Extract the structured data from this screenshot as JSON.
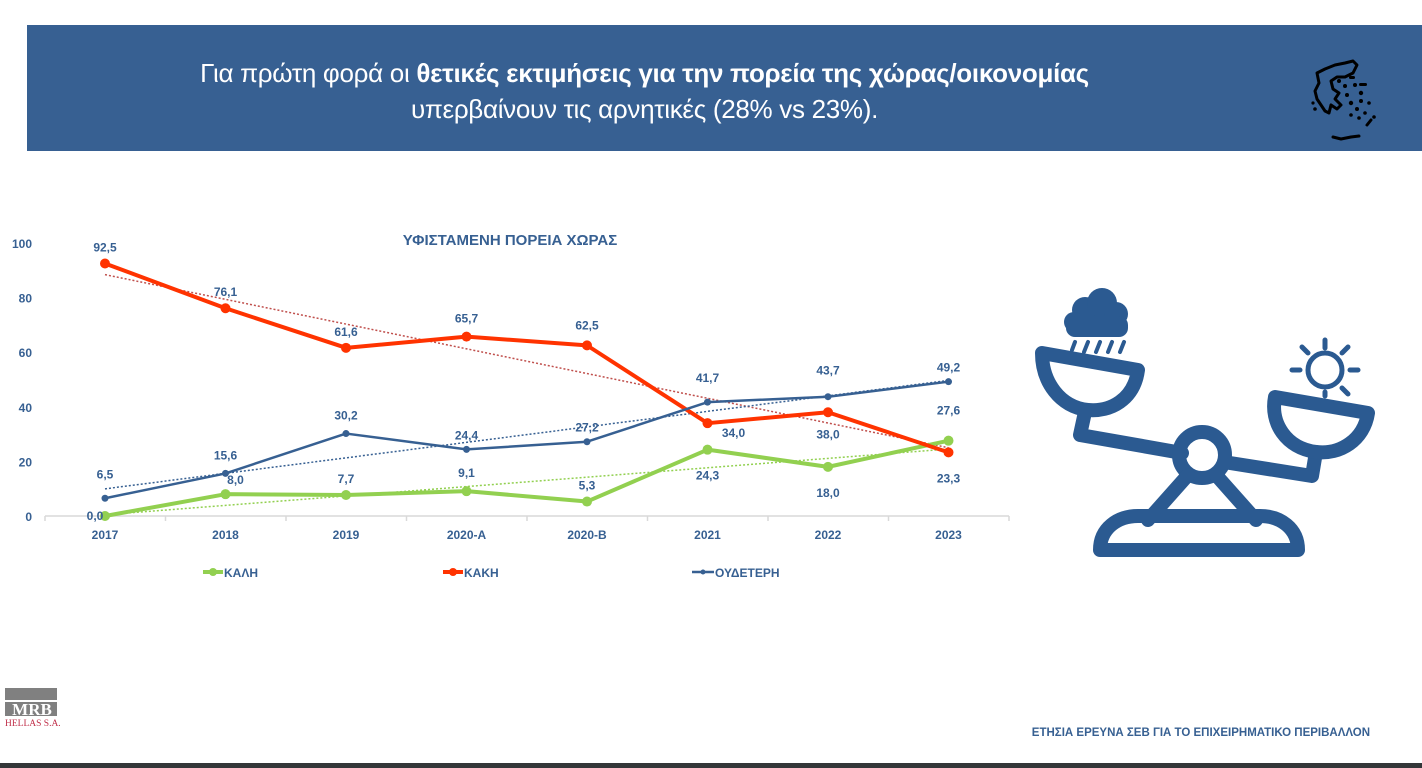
{
  "banner": {
    "line1_normal": "Για πρώτη φορά οι ",
    "line1_bold": "θετικές εκτιμήσεις για την πορεία της χώρας/οικονομίας",
    "line2": "υπερβαίνουν τις αρνητικές (28% vs 23%).",
    "icon": "greece-map-icon",
    "background": "#376092"
  },
  "illustration": {
    "icon": "balance-scale-icon",
    "left_pan_icon": "rain-cloud-icon",
    "right_pan_icon": "sun-icon",
    "color": "#2b5a91"
  },
  "logo": {
    "main": "MRB",
    "sub": "HELLAS S.A."
  },
  "footer": {
    "text": "ΕΤΗΣΙΑ ΕΡΕΥΝΑ ΣΕΒ ΓΙΑ ΤΟ ΕΠΙΧΕΙΡΗΜΑΤΙΚΟ ΠΕΡΙΒΑΛΛΟΝ"
  },
  "chart_data": {
    "type": "line",
    "title": "ΥΦΙΣΤΑΜΕΝΗ ΠΟΡΕΙΑ ΧΩΡΑΣ",
    "xlabel": "",
    "ylabel": "",
    "categories": [
      "2017",
      "2018",
      "2019",
      "2020-A",
      "2020-B",
      "2021",
      "2022",
      "2023"
    ],
    "ylim": [
      0,
      100
    ],
    "yticks": [
      "0",
      "20",
      "40",
      "60",
      "80",
      "100"
    ],
    "grid": false,
    "legend_position": "bottom",
    "trendlines": "linear, dotted, per series",
    "series": [
      {
        "name": "ΚΑΛΗ",
        "color": "#92d050",
        "values": [
          0.0,
          8.0,
          7.7,
          9.1,
          5.3,
          24.3,
          18.0,
          27.6
        ],
        "labels": [
          "0,0",
          "8,0",
          "7,7",
          "9,1",
          "5,3",
          "24,3",
          "18,0",
          "27,6"
        ]
      },
      {
        "name": "ΚΑΚΗ",
        "color": "#ff3300",
        "values": [
          92.5,
          76.1,
          61.6,
          65.7,
          62.5,
          34.0,
          38.0,
          23.3
        ],
        "labels": [
          "92,5",
          "76,1",
          "61,6",
          "65,7",
          "62,5",
          "34,0",
          "38,0",
          "23,3"
        ]
      },
      {
        "name": "ΟΥΔΕΤΕΡΗ",
        "color": "#376092",
        "values": [
          6.5,
          15.6,
          30.2,
          24.4,
          27.2,
          41.7,
          43.7,
          49.2
        ],
        "labels": [
          "6,5",
          "15,6",
          "30,2",
          "24,4",
          "27,2",
          "41,7",
          "43,7",
          "49,2"
        ]
      }
    ],
    "trend_colors": [
      "#92d050",
      "#c0504d",
      "#376092"
    ],
    "label_color": "#376092"
  }
}
